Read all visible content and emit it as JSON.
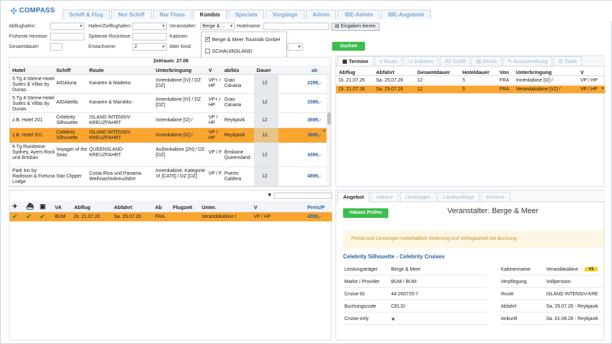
{
  "app": {
    "logo_text": "COMPASS"
  },
  "nav": {
    "tabs": [
      {
        "label": "Schiff & Flug"
      },
      {
        "label": "Nur Schiff"
      },
      {
        "label": "Nur Fluss"
      },
      {
        "label": "Kombis"
      },
      {
        "label": "Specials"
      },
      {
        "label": "Vorgänge"
      },
      {
        "label": "Admin"
      },
      {
        "label": "IBE-Admin"
      },
      {
        "label": "IBE-Angebote"
      }
    ],
    "active": "Kombis"
  },
  "filters": {
    "abflughafen": "Abflughafen:",
    "hafen": "Hafen/Zielflughafen:",
    "veranstalter": "Veranstalter:",
    "veranstalter_value": "Berge & ...",
    "hotelname": "Hotelname:",
    "frueheste": "Früheste Hinreise:",
    "spaeteste": "Späteste Rückreise:",
    "kabinen": "Kabinen:",
    "gesamtdauer": "Gesamtdauer:",
    "erwachsene": "Erwachsene:",
    "erwachsene_value": "2",
    "alter_kind": "Alter Kind:",
    "clear_button": "Eingaben leeren",
    "search_button": "Suchen"
  },
  "dropdown": {
    "items": [
      {
        "label": "Berge & Meer Touristik GmbH",
        "checked": true
      },
      {
        "label": "SCHAUINSLAND",
        "checked": false
      }
    ]
  },
  "results": {
    "zeitraum": "Zeitraum: 27.06",
    "columns": [
      "Hotel",
      "Schiff",
      "Route",
      "Unterbringung",
      "V",
      "ab/bis",
      "Dauer",
      "ab"
    ],
    "rows": [
      {
        "hotel": "5 Tg 4-Sterne-Hotel Suites & Villas by Dunas",
        "schiff": "AIDAluna",
        "route": "Kanaren & Madeira",
        "unterbringung": "Innenkabine [IV] / DZ [DZ]",
        "v": "VP+ / HP",
        "abbis": "Gran Canaria",
        "dauer": "12",
        "price": "2298,-"
      },
      {
        "hotel": "5 Tg 4-Sterne-Hotel Suites & Villas by Dunas",
        "schiff": "AIDAbella",
        "route": "Kanaren & Marokko",
        "unterbringung": "Innenkabine [IV] / DZ [DZ]",
        "v": "VP+ / HP",
        "abbis": "Gran Canaria",
        "dauer": "12",
        "price": "3399,-"
      },
      {
        "hotel": "z.B. Hotel 201",
        "schiff": "Celebrity Silhouette",
        "route": "ISLAND INTENSIV-KREUZFAHRT",
        "unterbringung": "Innenkabine [I2] /",
        "v": "VP / HP",
        "abbis": "Reykjavik",
        "dauer": "12",
        "price": "3699,-"
      },
      {
        "hotel": "z.B. Hotel 201",
        "schiff": "Celebrity Silhouette",
        "route": "ISLAND INTENSIV-KREUZFAHRT",
        "unterbringung": "Innenkabine [I2] /",
        "v": "VP / HP",
        "abbis": "Reykjavik",
        "dauer": "12",
        "price": "3699,-"
      },
      {
        "hotel": "6 Tg Rundreise Sydney, Ayers Rock und Brisban",
        "schiff": "Voyager of the Seas",
        "route": "QUEENSLAND-KREUZFAHRT",
        "unterbringung": "Außenkabine [2N] / DZ [DZ]",
        "v": "VP / F",
        "abbis": "Brisbane Queensland",
        "dauer": "12",
        "price": "4399,-"
      },
      {
        "hotel": "Park Inn by Radisson & Fortuna Lodge",
        "schiff": "Star Clipper",
        "route": "Costa Rica und Panama Weihnachtskreuzfahrt",
        "unterbringung": "Innenkabine, Kategorie VI [CAT6] / DZ [DZ]",
        "v": "VP / F",
        "abbis": "Puerto Caldera",
        "dauer": "12",
        "price": "4899,-"
      }
    ]
  },
  "bottom_table": {
    "columns": [
      "VA",
      "Abflug",
      "Abfahrt",
      "Ab",
      "Flugzeit",
      "Unter.",
      "V",
      "Preis/P"
    ],
    "row": {
      "va": "BUM",
      "abflug": "Di. 21.07.26",
      "abfahrt": "Sa. 25.07.26",
      "ab": "FRA",
      "flugzeit": "",
      "unter": "Verandakabine /",
      "v": "VP / HP",
      "preis": "4099,-"
    }
  },
  "right_tabs": [
    "Termine",
    "Route",
    "Kabinen",
    "Schiff",
    "Decks",
    "Ausschreibung",
    "Tarife"
  ],
  "termine": {
    "columns": [
      "Abflug",
      "Abfahrt",
      "Gesamtdauer",
      "Hoteldauer",
      "Von",
      "Unterbringung",
      "V"
    ],
    "rows": [
      {
        "abflug": "Di. 21.07.26",
        "abfahrt": "Sa. 25.07.26",
        "gesamt": "12",
        "hotel": "5",
        "von": "FRA",
        "unter": "Innenkabine [I2] /",
        "v": "VP / HP"
      },
      {
        "abflug": "Di. 21.07.26",
        "abfahrt": "Sa. 25.07.26",
        "gesamt": "12",
        "hotel": "5",
        "von": "FRA",
        "unter": "Verandakabine [V2] /",
        "v": "VP / HP"
      }
    ]
  },
  "detail_tabs": [
    "Angebot",
    "Vakanz",
    "Leistungen",
    "Landausflüge",
    "Einreise"
  ],
  "angebot": {
    "vakanz_button": "Vakanz Prüfen",
    "veranstalter": "Veranstalter: Berge & Meer",
    "notice": "Preise und Leistungen vorbehaltlich Änderung und Verfügbarkeit bei Buchung",
    "cruise_title": "Celebrity Silhouette - Celebrity Cruises",
    "left": [
      {
        "k": "Leistungsträger",
        "v": "Berge & Meer"
      },
      {
        "k": "Marke / Provider",
        "v": "BUM / BUM"
      },
      {
        "k": "Cruise-ID",
        "v": "44-260725-7"
      },
      {
        "k": "Buchungscode",
        "v": "CELSI"
      },
      {
        "k": "Cruise-only",
        "v": "✕"
      }
    ],
    "right": [
      {
        "k": "Kabinenname",
        "v": "Verandakabine",
        "badge": "V2"
      },
      {
        "k": "Verpflegung",
        "v": "Vollpension"
      },
      {
        "k": "Route",
        "v": "ISLAND INTENSIV-KRE"
      },
      {
        "k": "Abfahrt",
        "v": "Sa. 25.07.26 - Reykjavik"
      },
      {
        "k": "Ankunft",
        "v": "Sa. 01.08.26 - Reykjavik"
      }
    ]
  }
}
